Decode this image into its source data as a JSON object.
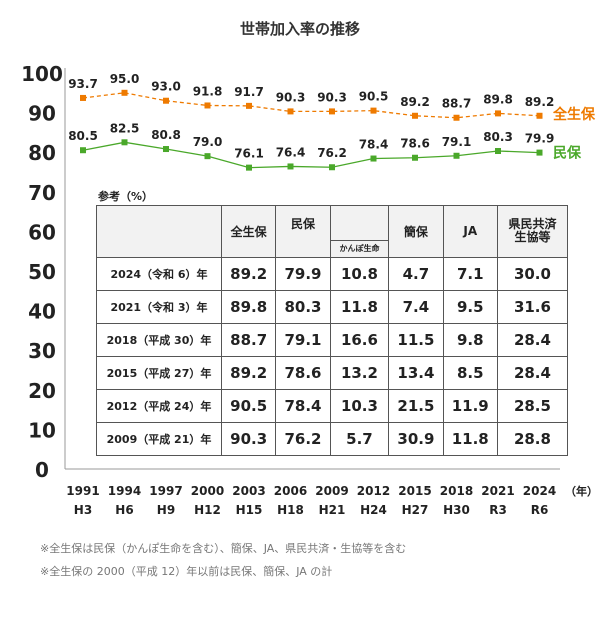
{
  "chart_data": {
    "type": "line",
    "title": "世帯加入率の推移",
    "x": [
      "1991",
      "1994",
      "1997",
      "2000",
      "2003",
      "2006",
      "2009",
      "2012",
      "2015",
      "2018",
      "2021",
      "2024"
    ],
    "x_era": [
      "H3",
      "H6",
      "H9",
      "H12",
      "H15",
      "H18",
      "H21",
      "H24",
      "H27",
      "H30",
      "R3",
      "R6"
    ],
    "x_unit": "（年）",
    "ylim": [
      0,
      100
    ],
    "yticks": [
      0,
      10,
      20,
      30,
      40,
      50,
      60,
      70,
      80,
      90,
      100
    ],
    "grid": false,
    "series": [
      {
        "name": "全生保",
        "color": "#ee7a00",
        "dashed": true,
        "values": [
          93.7,
          95.0,
          93.0,
          91.8,
          91.7,
          90.3,
          90.3,
          90.5,
          89.2,
          88.7,
          89.8,
          89.2
        ]
      },
      {
        "name": "民保",
        "color": "#4aa82a",
        "dashed": false,
        "values": [
          80.5,
          82.5,
          80.8,
          79.0,
          76.1,
          76.4,
          76.2,
          78.4,
          78.6,
          79.1,
          80.3,
          79.9
        ]
      }
    ],
    "legend": "right-inline"
  },
  "table": {
    "title": "参考（%）",
    "headers": [
      "全生保",
      "民保",
      "かんぽ生命",
      "簡保",
      "JA",
      "県民共済\n生協等"
    ],
    "rows": [
      {
        "label": "2024（令和 6）年",
        "values": [
          "89.2",
          "79.9",
          "10.8",
          "4.7",
          "7.1",
          "30.0"
        ]
      },
      {
        "label": "2021（令和 3）年",
        "values": [
          "89.8",
          "80.3",
          "11.8",
          "7.4",
          "9.5",
          "31.6"
        ]
      },
      {
        "label": "2018（平成 30）年",
        "values": [
          "88.7",
          "79.1",
          "16.6",
          "11.5",
          "9.8",
          "28.4"
        ]
      },
      {
        "label": "2015（平成 27）年",
        "values": [
          "89.2",
          "78.6",
          "13.2",
          "13.4",
          "8.5",
          "28.4"
        ]
      },
      {
        "label": "2012（平成 24）年",
        "values": [
          "90.5",
          "78.4",
          "10.3",
          "21.5",
          "11.9",
          "28.5"
        ]
      },
      {
        "label": "2009（平成 21）年",
        "values": [
          "90.3",
          "76.2",
          "5.7",
          "30.9",
          "11.8",
          "28.8"
        ]
      }
    ]
  },
  "notes": [
    "※全生保は民保（かんぽ生命を含む）、簡保、JA、県民共済・生協等を含む",
    "※全生保の 2000（平成 12）年以前は民保、簡保、JA の計"
  ]
}
